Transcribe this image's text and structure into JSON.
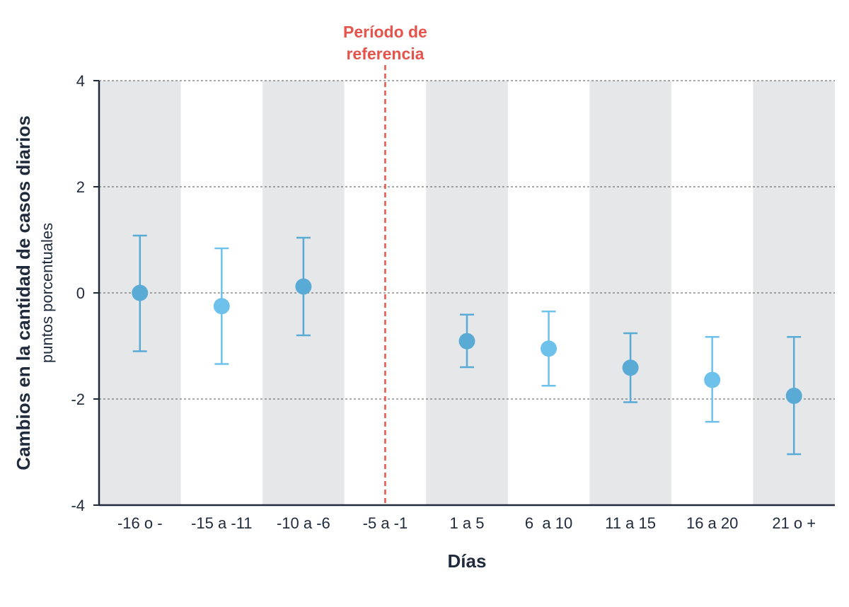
{
  "colors": {
    "band": "#e6e7e9",
    "axis": "#1f2a3c",
    "grid": "#555555",
    "marker_a": "#5aaad6",
    "marker_b": "#6dc1eb",
    "reference": "#e5534b"
  },
  "chart_data": {
    "type": "scatter",
    "subtype": "point-with-error-bars",
    "xlabel": "Días",
    "ylabel": "Cambios en la cantidad de casos diarios",
    "ylabel_units": "puntos porcentuales",
    "categories": [
      "-16 o -",
      "-15 a -11",
      "-10 a -6",
      "-5 a -1",
      "1 a 5",
      "6  a 10",
      "11 a 15",
      "16 a 20",
      "21 o +"
    ],
    "ylim": [
      -4,
      4
    ],
    "yticks": [
      4,
      2,
      0,
      -2,
      -4
    ],
    "grid": "horizontal-dashed",
    "shaded_bands": [
      "-16 o -",
      "-10 a -6",
      "1 a 5",
      "11 a 15",
      "21 o +"
    ],
    "reference_category": "-5 a -1",
    "reference_label_lines": [
      "Período de",
      "referencia"
    ],
    "points": [
      {
        "category": "-16 o -",
        "value": 0.0,
        "lower": -1.1,
        "upper": 1.08
      },
      {
        "category": "-15 a -11",
        "value": -0.25,
        "lower": -1.34,
        "upper": 0.84
      },
      {
        "category": "-10 a -6",
        "value": 0.12,
        "lower": -0.8,
        "upper": 1.04
      },
      {
        "category": "1 a 5",
        "value": -0.91,
        "lower": -1.4,
        "upper": -0.41
      },
      {
        "category": "6  a 10",
        "value": -1.05,
        "lower": -1.75,
        "upper": -0.35
      },
      {
        "category": "11 a 15",
        "value": -1.41,
        "lower": -2.06,
        "upper": -0.76
      },
      {
        "category": "16 a 20",
        "value": -1.64,
        "lower": -2.43,
        "upper": -0.83
      },
      {
        "category": "21 o +",
        "value": -1.94,
        "lower": -3.04,
        "upper": -0.83
      }
    ]
  }
}
